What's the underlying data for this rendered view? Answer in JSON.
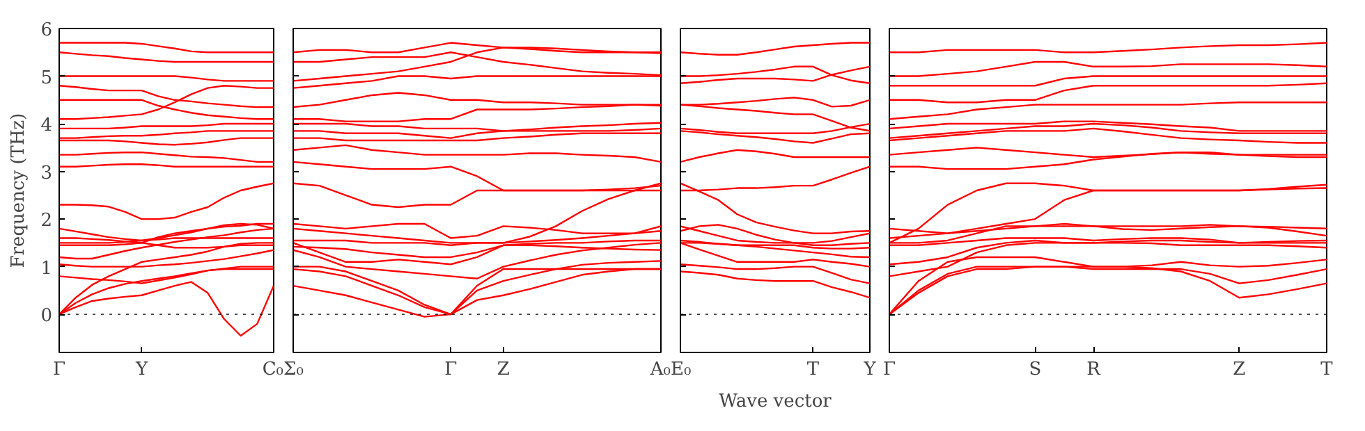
{
  "chart_data": [
    {
      "type": "line",
      "ylabel": "Frequency (THz)",
      "categories": [
        "Γ",
        null,
        null,
        null,
        null,
        "Y",
        null,
        null,
        null,
        null,
        null,
        null,
        null,
        "C₀"
      ],
      "ylim": [
        -0.8,
        6
      ],
      "yticks": [
        0,
        1,
        2,
        3,
        4,
        5,
        6
      ],
      "tick_labels": true,
      "ref_lines": [
        {
          "axis": "y",
          "value": 0,
          "color": "#000000",
          "line_style": "dotted"
        }
      ],
      "series": [
        {
          "color": "#ff0000",
          "values": [
            0,
            0.15,
            0.28,
            0.33,
            0.37,
            0.4,
            0.5,
            0.6,
            0.68,
            0.45,
            -0.1,
            -0.45,
            -0.2,
            0.6
          ]
        },
        {
          "color": "#ff0000",
          "values": [
            0,
            0.24,
            0.42,
            0.55,
            0.64,
            0.7,
            0.75,
            0.8,
            0.86,
            0.92,
            0.95,
            0.95,
            0.95,
            0.95
          ]
        },
        {
          "color": "#ff0000",
          "values": [
            0,
            0.35,
            0.62,
            0.8,
            0.95,
            1.1,
            1.15,
            1.2,
            1.25,
            1.32,
            1.42,
            1.48,
            1.5,
            1.5
          ]
        },
        {
          "color": "#ff0000",
          "values": [
            0.8,
            0.77,
            0.74,
            0.72,
            0.69,
            0.65,
            0.71,
            0.77,
            0.84,
            0.92,
            0.96,
            1.0,
            1.0,
            1.0
          ]
        },
        {
          "color": "#ff0000",
          "values": [
            1.05,
            1.02,
            1.0,
            1.0,
            1.0,
            1.0,
            1.03,
            1.05,
            1.08,
            1.12,
            1.16,
            1.22,
            1.28,
            1.35
          ]
        },
        {
          "color": "#ff0000",
          "values": [
            1.2,
            1.17,
            1.17,
            1.25,
            1.33,
            1.4,
            1.46,
            1.52,
            1.57,
            1.62,
            1.66,
            1.72,
            1.77,
            1.8
          ]
        },
        {
          "color": "#ff0000",
          "values": [
            1.45,
            1.45,
            1.45,
            1.45,
            1.47,
            1.5,
            1.62,
            1.7,
            1.75,
            1.8,
            1.84,
            1.86,
            1.9,
            1.9
          ]
        },
        {
          "color": "#ff0000",
          "values": [
            1.5,
            1.5,
            1.5,
            1.5,
            1.52,
            1.55,
            1.57,
            1.6,
            1.6,
            1.6,
            1.6,
            1.6,
            1.6,
            1.6
          ]
        },
        {
          "color": "#ff0000",
          "values": [
            1.6,
            1.6,
            1.58,
            1.56,
            1.53,
            1.5,
            1.45,
            1.4,
            1.4,
            1.4,
            1.42,
            1.45,
            1.45,
            1.45
          ]
        },
        {
          "color": "#ff0000",
          "values": [
            1.8,
            1.74,
            1.68,
            1.62,
            1.58,
            1.55,
            1.6,
            1.66,
            1.72,
            1.8,
            1.87,
            1.9,
            1.88,
            1.8
          ]
        },
        {
          "color": "#ff0000",
          "values": [
            2.3,
            2.3,
            2.29,
            2.26,
            2.15,
            2.0,
            2.0,
            2.03,
            2.15,
            2.25,
            2.45,
            2.6,
            2.68,
            2.75
          ]
        },
        {
          "color": "#ff0000",
          "values": [
            3.1,
            3.1,
            3.12,
            3.14,
            3.15,
            3.15,
            3.13,
            3.1,
            3.1,
            3.1,
            3.1,
            3.1,
            3.1,
            3.1
          ]
        },
        {
          "color": "#ff0000",
          "values": [
            3.35,
            3.35,
            3.37,
            3.39,
            3.4,
            3.4,
            3.37,
            3.34,
            3.31,
            3.3,
            3.28,
            3.24,
            3.2,
            3.2
          ]
        },
        {
          "color": "#ff0000",
          "values": [
            3.65,
            3.65,
            3.65,
            3.65,
            3.63,
            3.6,
            3.57,
            3.56,
            3.58,
            3.61,
            3.66,
            3.7,
            3.7,
            3.7
          ]
        },
        {
          "color": "#ff0000",
          "values": [
            3.7,
            3.7,
            3.72,
            3.74,
            3.75,
            3.75,
            3.77,
            3.8,
            3.82,
            3.85,
            3.85,
            3.85,
            3.85,
            3.85
          ]
        },
        {
          "color": "#ff0000",
          "values": [
            3.9,
            3.9,
            3.9,
            3.9,
            3.92,
            3.95,
            3.95,
            3.95,
            3.95,
            3.97,
            4.0,
            4.0,
            4.0,
            4.0
          ]
        },
        {
          "color": "#ff0000",
          "values": [
            4.1,
            4.1,
            4.12,
            4.14,
            4.17,
            4.2,
            4.3,
            4.45,
            4.62,
            4.75,
            4.8,
            4.78,
            4.75,
            4.75
          ]
        },
        {
          "color": "#ff0000",
          "values": [
            4.5,
            4.5,
            4.5,
            4.5,
            4.5,
            4.5,
            4.38,
            4.3,
            4.23,
            4.18,
            4.15,
            4.12,
            4.1,
            4.1
          ]
        },
        {
          "color": "#ff0000",
          "values": [
            4.8,
            4.77,
            4.73,
            4.7,
            4.7,
            4.7,
            4.58,
            4.5,
            4.47,
            4.43,
            4.4,
            4.37,
            4.35,
            4.35
          ]
        },
        {
          "color": "#ff0000",
          "values": [
            5.0,
            5.0,
            5.0,
            5.0,
            5.0,
            5.0,
            5.0,
            5.0,
            4.97,
            4.93,
            4.9,
            4.9,
            4.9,
            4.9
          ]
        },
        {
          "color": "#ff0000",
          "values": [
            5.5,
            5.47,
            5.44,
            5.42,
            5.38,
            5.35,
            5.32,
            5.3,
            5.3,
            5.3,
            5.3,
            5.3,
            5.3,
            5.3
          ]
        },
        {
          "color": "#ff0000",
          "values": [
            5.7,
            5.7,
            5.7,
            5.7,
            5.7,
            5.68,
            5.63,
            5.58,
            5.52,
            5.5,
            5.5,
            5.5,
            5.5,
            5.5
          ]
        }
      ]
    },
    {
      "type": "line",
      "categories": [
        "Σ₀",
        null,
        null,
        null,
        null,
        null,
        "Γ",
        null,
        "Z",
        null,
        null,
        null,
        null,
        null,
        "A₀"
      ],
      "ylim": [
        -0.8,
        6
      ],
      "yticks": [
        0,
        1,
        2,
        3,
        4,
        5,
        6
      ],
      "tick_labels": "x",
      "ref_lines": [
        {
          "axis": "y",
          "value": 0,
          "color": "#000000",
          "line_style": "dotted"
        }
      ],
      "series": [
        {
          "color": "#ff0000",
          "values": [
            0.6,
            0.5,
            0.4,
            0.25,
            0.1,
            -0.05,
            0,
            0.6,
            0.95,
            0.95,
            0.95,
            0.95,
            0.95,
            0.95,
            0.95
          ]
        },
        {
          "color": "#ff0000",
          "values": [
            0.95,
            0.9,
            0.8,
            0.6,
            0.4,
            0.15,
            0,
            0.3,
            0.4,
            0.53,
            0.68,
            0.83,
            0.9,
            0.95,
            0.95
          ]
        },
        {
          "color": "#ff0000",
          "values": [
            1.0,
            1.0,
            0.9,
            0.7,
            0.5,
            0.2,
            0,
            0.5,
            0.7,
            0.83,
            0.95,
            1.04,
            1.08,
            1.1,
            1.12
          ]
        },
        {
          "color": "#ff0000",
          "values": [
            1.35,
            1.2,
            1.0,
            0.95,
            0.9,
            0.85,
            0.8,
            0.75,
            1.0,
            1.13,
            1.25,
            1.34,
            1.4,
            1.46,
            1.5
          ]
        },
        {
          "color": "#ff0000",
          "values": [
            1.5,
            1.3,
            1.1,
            1.1,
            1.15,
            1.1,
            1.05,
            1.2,
            1.45,
            1.48,
            1.5,
            1.5,
            1.53,
            1.55,
            1.55
          ]
        },
        {
          "color": "#ff0000",
          "values": [
            1.42,
            1.4,
            1.37,
            1.3,
            1.25,
            1.2,
            1.2,
            1.3,
            1.45,
            1.45,
            1.43,
            1.4,
            1.38,
            1.36,
            1.35
          ]
        },
        {
          "color": "#ff0000",
          "values": [
            1.55,
            1.55,
            1.55,
            1.5,
            1.5,
            1.5,
            1.45,
            1.5,
            1.5,
            1.53,
            1.56,
            1.6,
            1.65,
            1.7,
            1.85
          ]
        },
        {
          "color": "#ff0000",
          "values": [
            1.8,
            1.75,
            1.7,
            1.65,
            1.6,
            1.55,
            1.5,
            1.5,
            1.5,
            1.63,
            1.85,
            2.17,
            2.42,
            2.6,
            2.75
          ]
        },
        {
          "color": "#ff0000",
          "values": [
            1.9,
            1.85,
            1.8,
            1.85,
            1.9,
            1.9,
            1.6,
            1.65,
            1.85,
            1.82,
            1.77,
            1.7,
            1.7,
            1.7,
            1.75
          ]
        },
        {
          "color": "#ff0000",
          "values": [
            2.75,
            2.7,
            2.5,
            2.3,
            2.25,
            2.3,
            2.3,
            2.6,
            2.6,
            2.6,
            2.6,
            2.6,
            2.6,
            2.6,
            2.6
          ]
        },
        {
          "color": "#ff0000",
          "values": [
            3.2,
            3.15,
            3.1,
            3.05,
            3.05,
            3.05,
            3.1,
            2.9,
            2.6,
            2.6,
            2.6,
            2.6,
            2.62,
            2.65,
            2.7
          ]
        },
        {
          "color": "#ff0000",
          "values": [
            3.45,
            3.5,
            3.55,
            3.45,
            3.4,
            3.35,
            3.35,
            3.35,
            3.35,
            3.38,
            3.38,
            3.35,
            3.33,
            3.3,
            3.2
          ]
        },
        {
          "color": "#ff0000",
          "values": [
            3.7,
            3.7,
            3.65,
            3.65,
            3.65,
            3.65,
            3.65,
            3.65,
            3.7,
            3.73,
            3.77,
            3.8,
            3.8,
            3.8,
            3.8
          ]
        },
        {
          "color": "#ff0000",
          "values": [
            3.85,
            3.85,
            3.8,
            3.8,
            3.8,
            3.75,
            3.7,
            3.8,
            3.85,
            3.85,
            3.85,
            3.85,
            3.85,
            3.87,
            3.9
          ]
        },
        {
          "color": "#ff0000",
          "values": [
            4.0,
            4.0,
            4.0,
            3.95,
            3.95,
            3.9,
            3.9,
            3.9,
            3.85,
            3.88,
            3.92,
            3.95,
            3.97,
            4.0,
            4.02
          ]
        },
        {
          "color": "#ff0000",
          "values": [
            4.1,
            4.1,
            4.05,
            4.05,
            4.05,
            4.1,
            4.1,
            4.3,
            4.3,
            4.3,
            4.32,
            4.35,
            4.37,
            4.4,
            4.4
          ]
        },
        {
          "color": "#ff0000",
          "values": [
            4.35,
            4.4,
            4.5,
            4.6,
            4.65,
            4.6,
            4.5,
            4.5,
            4.45,
            4.45,
            4.43,
            4.4,
            4.4,
            4.4,
            4.38
          ]
        },
        {
          "color": "#ff0000",
          "values": [
            4.75,
            4.8,
            4.85,
            4.9,
            5.0,
            5.0,
            4.95,
            5.0,
            5.0,
            5.0,
            5.0,
            5.0,
            5.0,
            5.0,
            5.0
          ]
        },
        {
          "color": "#ff0000",
          "values": [
            4.9,
            4.95,
            5.0,
            5.05,
            5.1,
            5.2,
            5.3,
            5.5,
            5.6,
            5.57,
            5.53,
            5.5,
            5.5,
            5.5,
            5.48
          ]
        },
        {
          "color": "#ff0000",
          "values": [
            5.3,
            5.3,
            5.35,
            5.4,
            5.4,
            5.4,
            5.5,
            5.4,
            5.3,
            5.24,
            5.17,
            5.1,
            5.07,
            5.05,
            5.02
          ]
        },
        {
          "color": "#ff0000",
          "values": [
            5.5,
            5.55,
            5.55,
            5.5,
            5.5,
            5.6,
            5.7,
            5.65,
            5.6,
            5.6,
            5.58,
            5.55,
            5.52,
            5.5,
            5.5
          ]
        }
      ]
    },
    {
      "type": "line",
      "xlabel": "Wave vector",
      "categories": [
        "E₀",
        null,
        null,
        null,
        null,
        null,
        null,
        "T",
        null,
        null,
        "Y"
      ],
      "ylim": [
        -0.8,
        6
      ],
      "yticks": [
        0,
        1,
        2,
        3,
        4,
        5,
        6
      ],
      "tick_labels": "x",
      "ref_lines": [
        {
          "axis": "y",
          "value": 0,
          "color": "#000000",
          "line_style": "dotted"
        }
      ],
      "series": [
        {
          "color": "#ff0000",
          "values": [
            0.9,
            0.87,
            0.83,
            0.75,
            0.72,
            0.7,
            0.7,
            0.7,
            0.57,
            0.47,
            0.35
          ]
        },
        {
          "color": "#ff0000",
          "values": [
            1.05,
            1.02,
            0.99,
            0.95,
            0.95,
            0.97,
            1.0,
            1.0,
            0.87,
            0.73,
            0.65
          ]
        },
        {
          "color": "#ff0000",
          "values": [
            1.5,
            1.36,
            1.23,
            1.1,
            1.1,
            1.1,
            1.1,
            1.15,
            1.1,
            1.06,
            1.0
          ]
        },
        {
          "color": "#ff0000",
          "values": [
            1.5,
            1.5,
            1.48,
            1.45,
            1.42,
            1.38,
            1.34,
            1.3,
            1.26,
            1.21,
            1.2
          ]
        },
        {
          "color": "#ff0000",
          "values": [
            1.55,
            1.52,
            1.48,
            1.45,
            1.45,
            1.45,
            1.45,
            1.4,
            1.38,
            1.38,
            1.4
          ]
        },
        {
          "color": "#ff0000",
          "values": [
            1.85,
            1.75,
            1.65,
            1.55,
            1.52,
            1.5,
            1.5,
            1.45,
            1.45,
            1.48,
            1.5
          ]
        },
        {
          "color": "#ff0000",
          "values": [
            1.75,
            1.85,
            1.88,
            1.8,
            1.67,
            1.57,
            1.5,
            1.5,
            1.54,
            1.62,
            1.7
          ]
        },
        {
          "color": "#ff0000",
          "values": [
            2.75,
            2.58,
            2.4,
            2.1,
            1.93,
            1.84,
            1.76,
            1.7,
            1.7,
            1.74,
            1.75
          ]
        },
        {
          "color": "#ff0000",
          "values": [
            2.6,
            2.6,
            2.62,
            2.65,
            2.65,
            2.67,
            2.7,
            2.7,
            2.83,
            2.97,
            3.1
          ]
        },
        {
          "color": "#ff0000",
          "values": [
            3.2,
            3.3,
            3.38,
            3.45,
            3.42,
            3.37,
            3.3,
            3.3,
            3.3,
            3.3,
            3.3
          ]
        },
        {
          "color": "#ff0000",
          "values": [
            3.85,
            3.82,
            3.78,
            3.75,
            3.72,
            3.68,
            3.63,
            3.6,
            3.69,
            3.78,
            3.8
          ]
        },
        {
          "color": "#ff0000",
          "values": [
            3.9,
            3.87,
            3.83,
            3.8,
            3.8,
            3.8,
            3.8,
            3.8,
            3.85,
            3.93,
            4.0
          ]
        },
        {
          "color": "#ff0000",
          "values": [
            4.4,
            4.37,
            4.33,
            4.3,
            4.27,
            4.23,
            4.2,
            4.2,
            4.06,
            3.92,
            3.85
          ]
        },
        {
          "color": "#ff0000",
          "values": [
            4.4,
            4.4,
            4.42,
            4.45,
            4.48,
            4.52,
            4.55,
            4.5,
            4.36,
            4.38,
            4.5
          ]
        },
        {
          "color": "#ff0000",
          "values": [
            5.0,
            5.0,
            5.02,
            5.05,
            5.09,
            5.14,
            5.2,
            5.2,
            5.02,
            4.91,
            4.85
          ]
        },
        {
          "color": "#ff0000",
          "values": [
            4.85,
            4.88,
            4.92,
            4.95,
            4.95,
            4.95,
            4.93,
            4.9,
            5.03,
            5.12,
            5.2
          ]
        },
        {
          "color": "#ff0000",
          "values": [
            5.5,
            5.47,
            5.45,
            5.45,
            5.5,
            5.56,
            5.62,
            5.65,
            5.68,
            5.7,
            5.7
          ]
        }
      ]
    },
    {
      "type": "line",
      "categories": [
        "Γ",
        null,
        null,
        null,
        null,
        "S",
        null,
        "R",
        null,
        null,
        null,
        null,
        "Z",
        null,
        null,
        "T"
      ],
      "ylim": [
        -0.8,
        6
      ],
      "yticks": [
        0,
        1,
        2,
        3,
        4,
        5,
        6
      ],
      "tick_labels": "x",
      "ref_lines": [
        {
          "axis": "y",
          "value": 0,
          "color": "#000000",
          "line_style": "dotted"
        }
      ],
      "series": [
        {
          "color": "#ff0000",
          "values": [
            0,
            0.45,
            0.8,
            0.95,
            0.95,
            1.0,
            1.0,
            1.0,
            1.0,
            0.97,
            0.9,
            0.7,
            0.35,
            0.42,
            0.53,
            0.65
          ]
        },
        {
          "color": "#ff0000",
          "values": [
            0,
            0.5,
            0.85,
            1.0,
            1.0,
            1.0,
            1.0,
            0.95,
            0.95,
            0.95,
            0.95,
            0.85,
            0.65,
            0.72,
            0.83,
            0.95
          ]
        },
        {
          "color": "#ff0000",
          "values": [
            0,
            0.7,
            1.1,
            1.2,
            1.2,
            1.2,
            1.1,
            1.0,
            1.0,
            1.03,
            1.1,
            1.03,
            1.0,
            1.02,
            1.08,
            1.15
          ]
        },
        {
          "color": "#ff0000",
          "values": [
            0.8,
            0.9,
            1.0,
            1.3,
            1.45,
            1.5,
            1.5,
            1.5,
            1.5,
            1.49,
            1.45,
            1.45,
            1.45,
            1.45,
            1.43,
            1.4
          ]
        },
        {
          "color": "#ff0000",
          "values": [
            1.05,
            1.1,
            1.2,
            1.4,
            1.5,
            1.55,
            1.5,
            1.5,
            1.53,
            1.55,
            1.55,
            1.52,
            1.5,
            1.5,
            1.5,
            1.5
          ]
        },
        {
          "color": "#ff0000",
          "values": [
            1.45,
            1.45,
            1.5,
            1.55,
            1.6,
            1.6,
            1.6,
            1.55,
            1.58,
            1.6,
            1.6,
            1.57,
            1.5,
            1.52,
            1.54,
            1.55
          ]
        },
        {
          "color": "#ff0000",
          "values": [
            1.5,
            1.5,
            1.55,
            1.7,
            1.85,
            1.85,
            1.9,
            1.85,
            1.79,
            1.77,
            1.8,
            1.83,
            1.85,
            1.84,
            1.82,
            1.8
          ]
        },
        {
          "color": "#ff0000",
          "values": [
            1.6,
            1.65,
            1.7,
            1.75,
            1.8,
            1.85,
            1.85,
            1.85,
            1.85,
            1.85,
            1.85,
            1.88,
            1.85,
            1.82,
            1.74,
            1.65
          ]
        },
        {
          "color": "#ff0000",
          "values": [
            1.8,
            1.75,
            1.7,
            1.8,
            1.9,
            2.0,
            2.4,
            2.6,
            2.6,
            2.6,
            2.6,
            2.6,
            2.6,
            2.62,
            2.64,
            2.65
          ]
        },
        {
          "color": "#ff0000",
          "values": [
            1.5,
            1.8,
            2.3,
            2.6,
            2.75,
            2.75,
            2.7,
            2.6,
            2.6,
            2.6,
            2.6,
            2.6,
            2.6,
            2.63,
            2.68,
            2.72
          ]
        },
        {
          "color": "#ff0000",
          "values": [
            3.1,
            3.1,
            3.05,
            3.05,
            3.05,
            3.1,
            3.15,
            3.25,
            3.31,
            3.37,
            3.4,
            3.37,
            3.35,
            3.32,
            3.3,
            3.3
          ]
        },
        {
          "color": "#ff0000",
          "values": [
            3.35,
            3.4,
            3.45,
            3.5,
            3.45,
            3.4,
            3.35,
            3.3,
            3.33,
            3.36,
            3.4,
            3.4,
            3.35,
            3.35,
            3.35,
            3.35
          ]
        },
        {
          "color": "#ff0000",
          "values": [
            3.65,
            3.7,
            3.75,
            3.8,
            3.85,
            3.85,
            3.85,
            3.9,
            3.84,
            3.77,
            3.7,
            3.67,
            3.65,
            3.62,
            3.6,
            3.6
          ]
        },
        {
          "color": "#ff0000",
          "values": [
            3.7,
            3.75,
            3.8,
            3.85,
            3.9,
            3.95,
            3.95,
            4.0,
            3.97,
            3.92,
            3.85,
            3.82,
            3.8,
            3.8,
            3.8,
            3.8
          ]
        },
        {
          "color": "#ff0000",
          "values": [
            3.9,
            3.95,
            4.0,
            4.0,
            4.0,
            4.0,
            4.05,
            4.05,
            4.02,
            3.99,
            3.95,
            3.92,
            3.85,
            3.85,
            3.85,
            3.85
          ]
        },
        {
          "color": "#ff0000",
          "values": [
            4.1,
            4.15,
            4.2,
            4.3,
            4.35,
            4.4,
            4.4,
            4.4,
            4.4,
            4.4,
            4.4,
            4.43,
            4.45,
            4.45,
            4.45,
            4.45
          ]
        },
        {
          "color": "#ff0000",
          "values": [
            4.5,
            4.5,
            4.45,
            4.45,
            4.5,
            4.5,
            4.7,
            4.8,
            4.8,
            4.8,
            4.8,
            4.8,
            4.8,
            4.8,
            4.82,
            4.85
          ]
        },
        {
          "color": "#ff0000",
          "values": [
            4.8,
            4.8,
            4.8,
            4.8,
            4.8,
            4.8,
            4.95,
            5.0,
            5.0,
            5.0,
            5.0,
            5.0,
            5.0,
            5.0,
            5.0,
            5.0
          ]
        },
        {
          "color": "#ff0000",
          "values": [
            5.0,
            5.0,
            5.05,
            5.1,
            5.2,
            5.3,
            5.3,
            5.2,
            5.2,
            5.21,
            5.25,
            5.25,
            5.25,
            5.25,
            5.23,
            5.2
          ]
        },
        {
          "color": "#ff0000",
          "values": [
            5.5,
            5.5,
            5.55,
            5.55,
            5.55,
            5.55,
            5.5,
            5.5,
            5.53,
            5.56,
            5.6,
            5.63,
            5.65,
            5.65,
            5.67,
            5.7
          ]
        }
      ]
    }
  ]
}
